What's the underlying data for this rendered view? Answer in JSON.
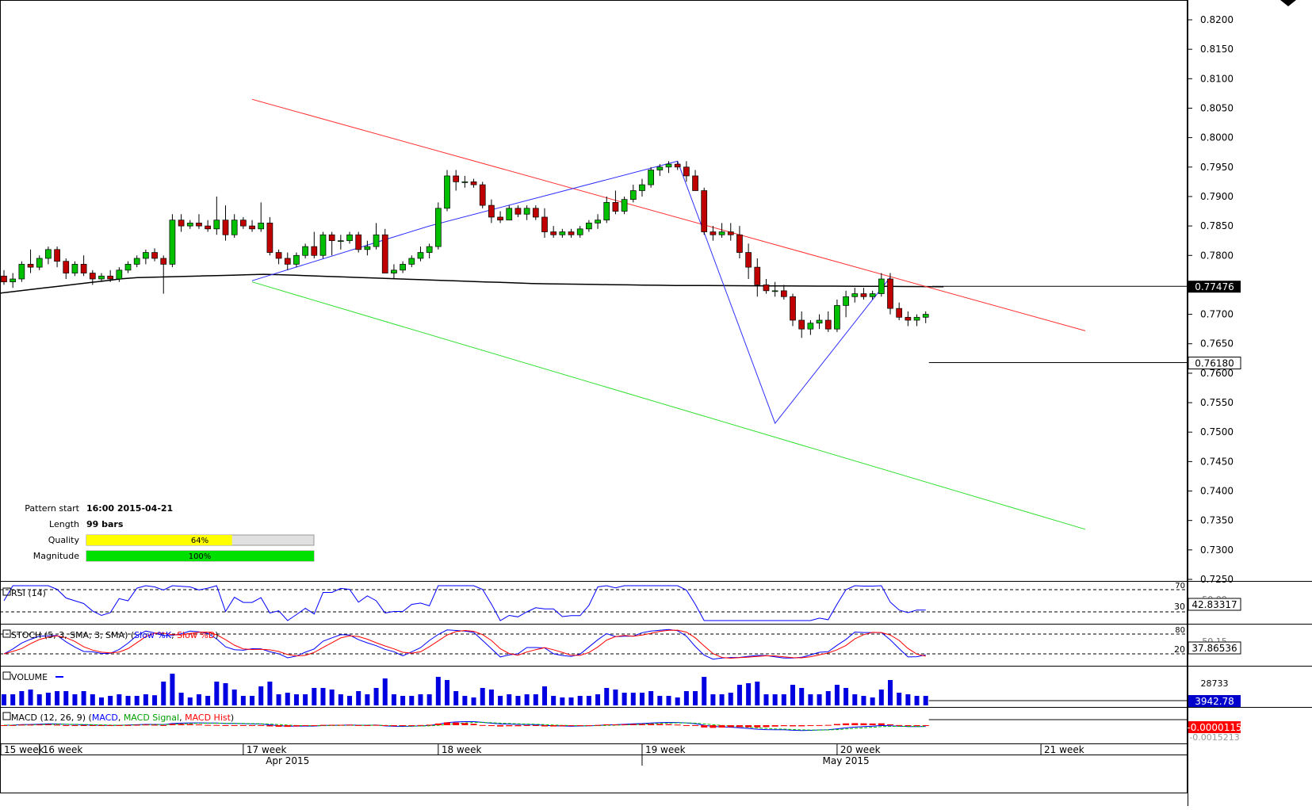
{
  "chart_data": {
    "type": "candlestick",
    "price_axis": {
      "ticks": [
        "0.8200",
        "0.8150",
        "0.8100",
        "0.8050",
        "0.8000",
        "0.7950",
        "0.7900",
        "0.7850",
        "0.7800",
        "0.7700",
        "0.7650",
        "0.7600",
        "0.7550",
        "0.7500",
        "0.7450",
        "0.7400",
        "0.7350",
        "0.7300",
        "0.7250"
      ],
      "ylim": [
        0.725,
        0.8225
      ],
      "ma_label": "0.77476",
      "ma_value": 0.77476,
      "last_label": "0.76180",
      "last_value": 0.7618
    },
    "time_axis": {
      "week_labels": [
        {
          "label": "15 week",
          "bar": 0
        },
        {
          "label": "16 week",
          "bar": 4
        },
        {
          "label": "17 week",
          "bar": 27
        },
        {
          "label": "18 week",
          "bar": 49
        },
        {
          "label": "19 week",
          "bar": 72
        },
        {
          "label": "20 week",
          "bar": 94
        },
        {
          "label": "21 week",
          "bar": 117
        }
      ],
      "month_labels": [
        {
          "label": "Apr 2015",
          "bar": 32
        },
        {
          "label": "May 2015",
          "bar": 95
        }
      ]
    },
    "candles": [
      [
        0.7765,
        0.7775,
        0.775,
        0.7755
      ],
      [
        0.7755,
        0.777,
        0.7745,
        0.776
      ],
      [
        0.776,
        0.779,
        0.7755,
        0.7785
      ],
      [
        0.7785,
        0.781,
        0.777,
        0.778
      ],
      [
        0.778,
        0.78,
        0.7775,
        0.7795
      ],
      [
        0.7795,
        0.7815,
        0.7785,
        0.781
      ],
      [
        0.781,
        0.7815,
        0.778,
        0.779
      ],
      [
        0.779,
        0.7795,
        0.776,
        0.777
      ],
      [
        0.777,
        0.779,
        0.7765,
        0.7785
      ],
      [
        0.7785,
        0.78,
        0.7765,
        0.777
      ],
      [
        0.777,
        0.7775,
        0.775,
        0.776
      ],
      [
        0.776,
        0.777,
        0.7755,
        0.7765
      ],
      [
        0.7765,
        0.7775,
        0.7755,
        0.776
      ],
      [
        0.776,
        0.778,
        0.7755,
        0.7775
      ],
      [
        0.7775,
        0.779,
        0.777,
        0.7785
      ],
      [
        0.7785,
        0.78,
        0.778,
        0.7795
      ],
      [
        0.7795,
        0.781,
        0.7785,
        0.7805
      ],
      [
        0.7805,
        0.7812,
        0.779,
        0.7795
      ],
      [
        0.7795,
        0.78,
        0.7735,
        0.7785
      ],
      [
        0.7785,
        0.787,
        0.778,
        0.786
      ],
      [
        0.786,
        0.787,
        0.784,
        0.785
      ],
      [
        0.785,
        0.786,
        0.7845,
        0.7855
      ],
      [
        0.7855,
        0.787,
        0.7845,
        0.785
      ],
      [
        0.785,
        0.786,
        0.784,
        0.7845
      ],
      [
        0.7845,
        0.79,
        0.7835,
        0.786
      ],
      [
        0.786,
        0.7885,
        0.7825,
        0.7835
      ],
      [
        0.7835,
        0.787,
        0.783,
        0.786
      ],
      [
        0.786,
        0.7865,
        0.7845,
        0.785
      ],
      [
        0.785,
        0.786,
        0.784,
        0.7845
      ],
      [
        0.7845,
        0.789,
        0.784,
        0.7855
      ],
      [
        0.7855,
        0.7865,
        0.78,
        0.7805
      ],
      [
        0.7805,
        0.781,
        0.7785,
        0.7795
      ],
      [
        0.7795,
        0.7805,
        0.7775,
        0.7785
      ],
      [
        0.7785,
        0.7805,
        0.778,
        0.78
      ],
      [
        0.78,
        0.782,
        0.7795,
        0.7815
      ],
      [
        0.7815,
        0.784,
        0.7795,
        0.78
      ],
      [
        0.78,
        0.784,
        0.7795,
        0.7835
      ],
      [
        0.7835,
        0.784,
        0.78,
        0.7825
      ],
      [
        0.7825,
        0.7835,
        0.781,
        0.7825
      ],
      [
        0.7825,
        0.784,
        0.782,
        0.7835
      ],
      [
        0.7835,
        0.784,
        0.7805,
        0.781
      ],
      [
        0.781,
        0.7825,
        0.78,
        0.7815
      ],
      [
        0.7815,
        0.7855,
        0.781,
        0.7835
      ],
      [
        0.7835,
        0.7845,
        0.777,
        0.777
      ],
      [
        0.777,
        0.7785,
        0.776,
        0.7775
      ],
      [
        0.7775,
        0.779,
        0.777,
        0.7785
      ],
      [
        0.7785,
        0.78,
        0.778,
        0.7795
      ],
      [
        0.7795,
        0.7815,
        0.779,
        0.7805
      ],
      [
        0.7805,
        0.782,
        0.7795,
        0.7815
      ],
      [
        0.7815,
        0.789,
        0.781,
        0.788
      ],
      [
        0.788,
        0.7945,
        0.7875,
        0.7935
      ],
      [
        0.7935,
        0.7945,
        0.791,
        0.7925
      ],
      [
        0.7925,
        0.7935,
        0.7915,
        0.7925
      ],
      [
        0.7925,
        0.793,
        0.7915,
        0.792
      ],
      [
        0.792,
        0.7925,
        0.788,
        0.7885
      ],
      [
        0.7885,
        0.7895,
        0.7855,
        0.7865
      ],
      [
        0.7865,
        0.7875,
        0.7855,
        0.786
      ],
      [
        0.786,
        0.7885,
        0.786,
        0.788
      ],
      [
        0.788,
        0.7885,
        0.7865,
        0.787
      ],
      [
        0.787,
        0.7885,
        0.786,
        0.788
      ],
      [
        0.788,
        0.7885,
        0.786,
        0.7865
      ],
      [
        0.7865,
        0.788,
        0.783,
        0.784
      ],
      [
        0.784,
        0.785,
        0.783,
        0.7835
      ],
      [
        0.7835,
        0.7845,
        0.783,
        0.784
      ],
      [
        0.784,
        0.7845,
        0.783,
        0.7835
      ],
      [
        0.7835,
        0.785,
        0.783,
        0.7845
      ],
      [
        0.7845,
        0.786,
        0.784,
        0.7855
      ],
      [
        0.7855,
        0.787,
        0.7845,
        0.786
      ],
      [
        0.786,
        0.79,
        0.7855,
        0.789
      ],
      [
        0.789,
        0.791,
        0.787,
        0.7875
      ],
      [
        0.7875,
        0.79,
        0.787,
        0.7895
      ],
      [
        0.7895,
        0.792,
        0.789,
        0.791
      ],
      [
        0.791,
        0.793,
        0.79,
        0.792
      ],
      [
        0.792,
        0.795,
        0.7915,
        0.7945
      ],
      [
        0.7945,
        0.7955,
        0.7935,
        0.795
      ],
      [
        0.795,
        0.796,
        0.794,
        0.7955
      ],
      [
        0.7955,
        0.796,
        0.7945,
        0.795
      ],
      [
        0.795,
        0.796,
        0.7925,
        0.7935
      ],
      [
        0.7935,
        0.7945,
        0.791,
        0.791
      ],
      [
        0.791,
        0.7915,
        0.7835,
        0.784
      ],
      [
        0.784,
        0.785,
        0.7825,
        0.7835
      ],
      [
        0.7835,
        0.7855,
        0.783,
        0.784
      ],
      [
        0.784,
        0.7855,
        0.7825,
        0.7835
      ],
      [
        0.7835,
        0.785,
        0.7795,
        0.7805
      ],
      [
        0.7805,
        0.782,
        0.776,
        0.778
      ],
      [
        0.778,
        0.7795,
        0.773,
        0.775
      ],
      [
        0.775,
        0.776,
        0.7735,
        0.774
      ],
      [
        0.774,
        0.7755,
        0.773,
        0.774
      ],
      [
        0.774,
        0.775,
        0.7725,
        0.773
      ],
      [
        0.773,
        0.7735,
        0.768,
        0.769
      ],
      [
        0.769,
        0.7705,
        0.766,
        0.7675
      ],
      [
        0.7675,
        0.769,
        0.7665,
        0.7685
      ],
      [
        0.7685,
        0.77,
        0.7675,
        0.769
      ],
      [
        0.769,
        0.7705,
        0.767,
        0.7675
      ],
      [
        0.7675,
        0.7725,
        0.767,
        0.7715
      ],
      [
        0.7715,
        0.774,
        0.7695,
        0.773
      ],
      [
        0.773,
        0.7745,
        0.772,
        0.7735
      ],
      [
        0.7735,
        0.7745,
        0.7725,
        0.773
      ],
      [
        0.773,
        0.774,
        0.7725,
        0.7735
      ],
      [
        0.7735,
        0.777,
        0.773,
        0.776
      ],
      [
        0.776,
        0.777,
        0.77,
        0.771
      ],
      [
        0.771,
        0.772,
        0.769,
        0.7695
      ],
      [
        0.7695,
        0.7705,
        0.768,
        0.769
      ],
      [
        0.769,
        0.77,
        0.768,
        0.7695
      ],
      [
        0.7695,
        0.7705,
        0.7685,
        0.77
      ]
    ],
    "ma_curve": [
      0.7735,
      0.7762,
      0.7768,
      0.776,
      0.7752,
      0.7749,
      0.7748,
      0.7747
    ],
    "pattern_lines": {
      "upper": {
        "from_bar": 28,
        "from_price": 0.8065,
        "to_bar": 122,
        "to_price": 0.7672
      },
      "lower": {
        "from_bar": 28,
        "from_price": 0.7755,
        "to_bar": 122,
        "to_price": 0.7335
      },
      "zigzag_bars": [
        28,
        48,
        76,
        87,
        100
      ],
      "zigzag_prices": [
        0.7757,
        0.785,
        0.796,
        0.7515,
        0.7763
      ]
    },
    "pattern_info": {
      "start_label": "Pattern start",
      "start_value": "16:00 2015-04-21",
      "length_label": "Length",
      "length_value": "99 bars",
      "quality_label": "Quality",
      "quality_pct": 64,
      "quality_text": "64%",
      "magnitude_label": "Magnitude",
      "magnitude_pct": 100,
      "magnitude_text": "100%"
    },
    "indicators": {
      "rsi": {
        "label": "RSI (14)",
        "value": "42.83317",
        "levels": [
          "70",
          "30"
        ],
        "partial": "50.00"
      },
      "stoch": {
        "label_prefix": "STOCH (5, 3, SMA, 3, SMA)",
        "k_label": "Slow %K",
        "d_label": "Slow %D",
        "value": "37.86536",
        "levels": [
          "80",
          "20"
        ],
        "partial": "50.15"
      },
      "volume": {
        "label": "VOLUME",
        "value": "3942.78",
        "axis_label": "28733"
      },
      "macd": {
        "label_prefix": "MACD (12, 26, 9)",
        "macd_label": "MACD",
        "signal_label": "MACD Signal",
        "hist_label": "MACD Hist",
        "value": "-0.0000115",
        "partial": "-0.0015213"
      }
    },
    "colors": {
      "up": "#00c000",
      "down": "#c00000",
      "upper_line": "#ff3030",
      "lower_line": "#30e030",
      "zigzag": "#3030ff",
      "ma": "#000000",
      "volume": "#0000e0"
    }
  }
}
